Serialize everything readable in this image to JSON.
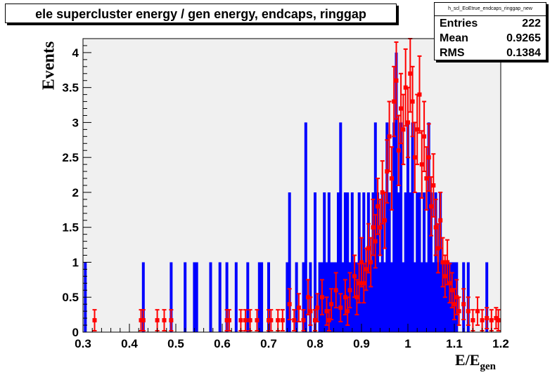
{
  "title": "ele supercluster energy / gen energy, endcaps, ringgap",
  "stats": {
    "name": "h_scl_EoEtrue_endcaps_ringgap_new",
    "rows": [
      {
        "label": "Entries",
        "value": "222"
      },
      {
        "label": "Mean",
        "value": "0.9265"
      },
      {
        "label": "RMS",
        "value": "0.1384"
      }
    ]
  },
  "axis": {
    "ylabel": "Events",
    "xlabel_main": "E/E",
    "xlabel_sub": "gen"
  },
  "chart_data": {
    "type": "bar",
    "xlim": [
      0.3,
      1.2
    ],
    "ylim": [
      0,
      4.2
    ],
    "xticks": [
      {
        "v": 0.3,
        "label": "0.3"
      },
      {
        "v": 0.4,
        "label": "0.4"
      },
      {
        "v": 0.5,
        "label": "0.5"
      },
      {
        "v": 0.6,
        "label": "0.6"
      },
      {
        "v": 0.7,
        "label": "0.7"
      },
      {
        "v": 0.8,
        "label": "0.8"
      },
      {
        "v": 0.9,
        "label": "0.9"
      },
      {
        "v": 1.0,
        "label": "1"
      },
      {
        "v": 1.1,
        "label": "1.1"
      },
      {
        "v": 1.2,
        "label": "1.2"
      }
    ],
    "yticks": [
      {
        "v": 0,
        "label": "0"
      },
      {
        "v": 0.5,
        "label": "0.5"
      },
      {
        "v": 1,
        "label": "1"
      },
      {
        "v": 1.5,
        "label": "1.5"
      },
      {
        "v": 2,
        "label": "2"
      },
      {
        "v": 2.5,
        "label": "2.5"
      },
      {
        "v": 3,
        "label": "3"
      },
      {
        "v": 3.5,
        "label": "3.5"
      },
      {
        "v": 4,
        "label": "4"
      }
    ],
    "colors": {
      "blue": "#0000ff",
      "red": "#ff0000",
      "frame_bg": "#f0f0f0"
    },
    "series": [
      {
        "color": "blue",
        "style": "histogram-step",
        "points": [
          [
            0.305,
            1
          ],
          [
            0.43,
            1
          ],
          [
            0.49,
            1
          ],
          [
            0.52,
            1
          ],
          [
            0.54,
            1
          ],
          [
            0.545,
            1
          ],
          [
            0.575,
            1
          ],
          [
            0.595,
            1
          ],
          [
            0.61,
            1
          ],
          [
            0.63,
            1
          ],
          [
            0.655,
            1
          ],
          [
            0.68,
            1
          ],
          [
            0.685,
            1
          ],
          [
            0.7,
            1
          ],
          [
            0.74,
            1
          ],
          [
            0.745,
            2
          ],
          [
            0.76,
            1
          ],
          [
            0.775,
            1
          ],
          [
            0.78,
            3
          ],
          [
            0.79,
            1
          ],
          [
            0.8,
            2
          ],
          [
            0.81,
            1
          ],
          [
            0.815,
            1
          ],
          [
            0.82,
            2
          ],
          [
            0.825,
            1
          ],
          [
            0.83,
            2
          ],
          [
            0.835,
            1
          ],
          [
            0.84,
            1
          ],
          [
            0.845,
            1
          ],
          [
            0.85,
            2
          ],
          [
            0.855,
            3
          ],
          [
            0.86,
            1
          ],
          [
            0.865,
            2
          ],
          [
            0.87,
            2
          ],
          [
            0.875,
            1
          ],
          [
            0.88,
            2
          ],
          [
            0.885,
            1
          ],
          [
            0.89,
            1
          ],
          [
            0.895,
            2
          ],
          [
            0.9,
            1
          ],
          [
            0.905,
            2
          ],
          [
            0.91,
            1
          ],
          [
            0.915,
            2
          ],
          [
            0.92,
            1
          ],
          [
            0.925,
            2
          ],
          [
            0.93,
            3
          ],
          [
            0.935,
            2
          ],
          [
            0.94,
            1
          ],
          [
            0.945,
            2
          ],
          [
            0.95,
            1
          ],
          [
            0.955,
            3
          ],
          [
            0.96,
            2
          ],
          [
            0.965,
            1
          ],
          [
            0.97,
            3
          ],
          [
            0.975,
            4
          ],
          [
            0.98,
            2
          ],
          [
            0.985,
            3
          ],
          [
            0.99,
            1
          ],
          [
            0.995,
            2
          ],
          [
            1.0,
            3
          ],
          [
            1.005,
            2
          ],
          [
            1.01,
            3
          ],
          [
            1.015,
            1
          ],
          [
            1.02,
            2
          ],
          [
            1.025,
            2
          ],
          [
            1.03,
            1
          ],
          [
            1.035,
            2
          ],
          [
            1.04,
            1
          ],
          [
            1.045,
            3
          ],
          [
            1.05,
            2
          ],
          [
            1.055,
            1
          ],
          [
            1.06,
            2
          ],
          [
            1.065,
            1
          ],
          [
            1.07,
            2
          ],
          [
            1.075,
            1
          ],
          [
            1.08,
            1
          ],
          [
            1.085,
            1
          ],
          [
            1.09,
            1
          ],
          [
            1.095,
            1
          ],
          [
            1.1,
            1
          ],
          [
            1.105,
            1
          ],
          [
            1.12,
            1
          ],
          [
            1.13,
            1
          ],
          [
            1.17,
            1
          ]
        ]
      },
      {
        "color": "red",
        "style": "error-bars",
        "points": [
          [
            0.325,
            0.17,
            0.15
          ],
          [
            0.425,
            0.17,
            0.15
          ],
          [
            0.43,
            0.17,
            0.15
          ],
          [
            0.46,
            0.17,
            0.15
          ],
          [
            0.475,
            0.17,
            0.15
          ],
          [
            0.49,
            0.17,
            0.15
          ],
          [
            0.61,
            0.17,
            0.15
          ],
          [
            0.615,
            0.17,
            0.15
          ],
          [
            0.64,
            0.17,
            0.15
          ],
          [
            0.65,
            0.17,
            0.15
          ],
          [
            0.66,
            0.17,
            0.15
          ],
          [
            0.675,
            0.17,
            0.15
          ],
          [
            0.7,
            0.17,
            0.15
          ],
          [
            0.705,
            0.17,
            0.15
          ],
          [
            0.72,
            0.17,
            0.15
          ],
          [
            0.73,
            0.17,
            0.15
          ],
          [
            0.745,
            0.4,
            0.22
          ],
          [
            0.755,
            0.17,
            0.15
          ],
          [
            0.765,
            0.35,
            0.2
          ],
          [
            0.775,
            0.17,
            0.15
          ],
          [
            0.785,
            0.5,
            0.25
          ],
          [
            0.79,
            0.3,
            0.2
          ],
          [
            0.8,
            0.17,
            0.15
          ],
          [
            0.805,
            0.35,
            0.2
          ],
          [
            0.815,
            0.5,
            0.25
          ],
          [
            0.825,
            0.3,
            0.2
          ],
          [
            0.83,
            0.17,
            0.15
          ],
          [
            0.835,
            0.4,
            0.22
          ],
          [
            0.845,
            0.6,
            0.25
          ],
          [
            0.855,
            0.35,
            0.2
          ],
          [
            0.865,
            0.5,
            0.25
          ],
          [
            0.87,
            0.3,
            0.2
          ],
          [
            0.875,
            0.6,
            0.25
          ],
          [
            0.885,
            0.8,
            0.3
          ],
          [
            0.89,
            0.5,
            0.25
          ],
          [
            0.895,
            0.7,
            0.28
          ],
          [
            0.9,
            1.0,
            0.35
          ],
          [
            0.905,
            0.7,
            0.28
          ],
          [
            0.91,
            0.9,
            0.3
          ],
          [
            0.915,
            1.2,
            0.35
          ],
          [
            0.92,
            1.0,
            0.35
          ],
          [
            0.925,
            1.5,
            0.4
          ],
          [
            0.93,
            1.3,
            0.38
          ],
          [
            0.935,
            1.8,
            0.4
          ],
          [
            0.94,
            1.5,
            0.4
          ],
          [
            0.945,
            2.0,
            0.45
          ],
          [
            0.95,
            1.6,
            0.4
          ],
          [
            0.955,
            2.3,
            0.45
          ],
          [
            0.96,
            2.8,
            0.5
          ],
          [
            0.965,
            2.2,
            0.45
          ],
          [
            0.97,
            3.3,
            0.5
          ],
          [
            0.975,
            3.6,
            0.55
          ],
          [
            0.98,
            2.6,
            0.5
          ],
          [
            0.985,
            3.2,
            0.5
          ],
          [
            0.99,
            2.9,
            0.5
          ],
          [
            0.995,
            3.5,
            0.55
          ],
          [
            1.0,
            3.0,
            0.5
          ],
          [
            1.005,
            3.7,
            0.55
          ],
          [
            1.01,
            3.3,
            0.5
          ],
          [
            1.015,
            2.5,
            0.5
          ],
          [
            1.02,
            2.9,
            0.5
          ],
          [
            1.025,
            3.4,
            0.55
          ],
          [
            1.03,
            2.4,
            0.48
          ],
          [
            1.035,
            2.8,
            0.5
          ],
          [
            1.04,
            2.2,
            0.45
          ],
          [
            1.045,
            2.5,
            0.48
          ],
          [
            1.05,
            1.8,
            0.42
          ],
          [
            1.055,
            2.1,
            0.45
          ],
          [
            1.06,
            1.5,
            0.4
          ],
          [
            1.065,
            1.2,
            0.35
          ],
          [
            1.07,
            1.6,
            0.4
          ],
          [
            1.075,
            1.0,
            0.35
          ],
          [
            1.08,
            0.8,
            0.3
          ],
          [
            1.085,
            1.0,
            0.32
          ],
          [
            1.09,
            0.7,
            0.28
          ],
          [
            1.095,
            0.6,
            0.25
          ],
          [
            1.1,
            0.4,
            0.22
          ],
          [
            1.105,
            0.5,
            0.25
          ],
          [
            1.11,
            0.3,
            0.2
          ],
          [
            1.12,
            0.4,
            0.22
          ],
          [
            1.13,
            0.3,
            0.2
          ],
          [
            1.14,
            0.17,
            0.15
          ],
          [
            1.15,
            0.3,
            0.2
          ],
          [
            1.16,
            0.17,
            0.15
          ],
          [
            1.17,
            0.2,
            0.15
          ],
          [
            1.18,
            0.17,
            0.15
          ],
          [
            1.19,
            0.2,
            0.15
          ],
          [
            1.195,
            0.17,
            0.15
          ]
        ]
      }
    ]
  }
}
